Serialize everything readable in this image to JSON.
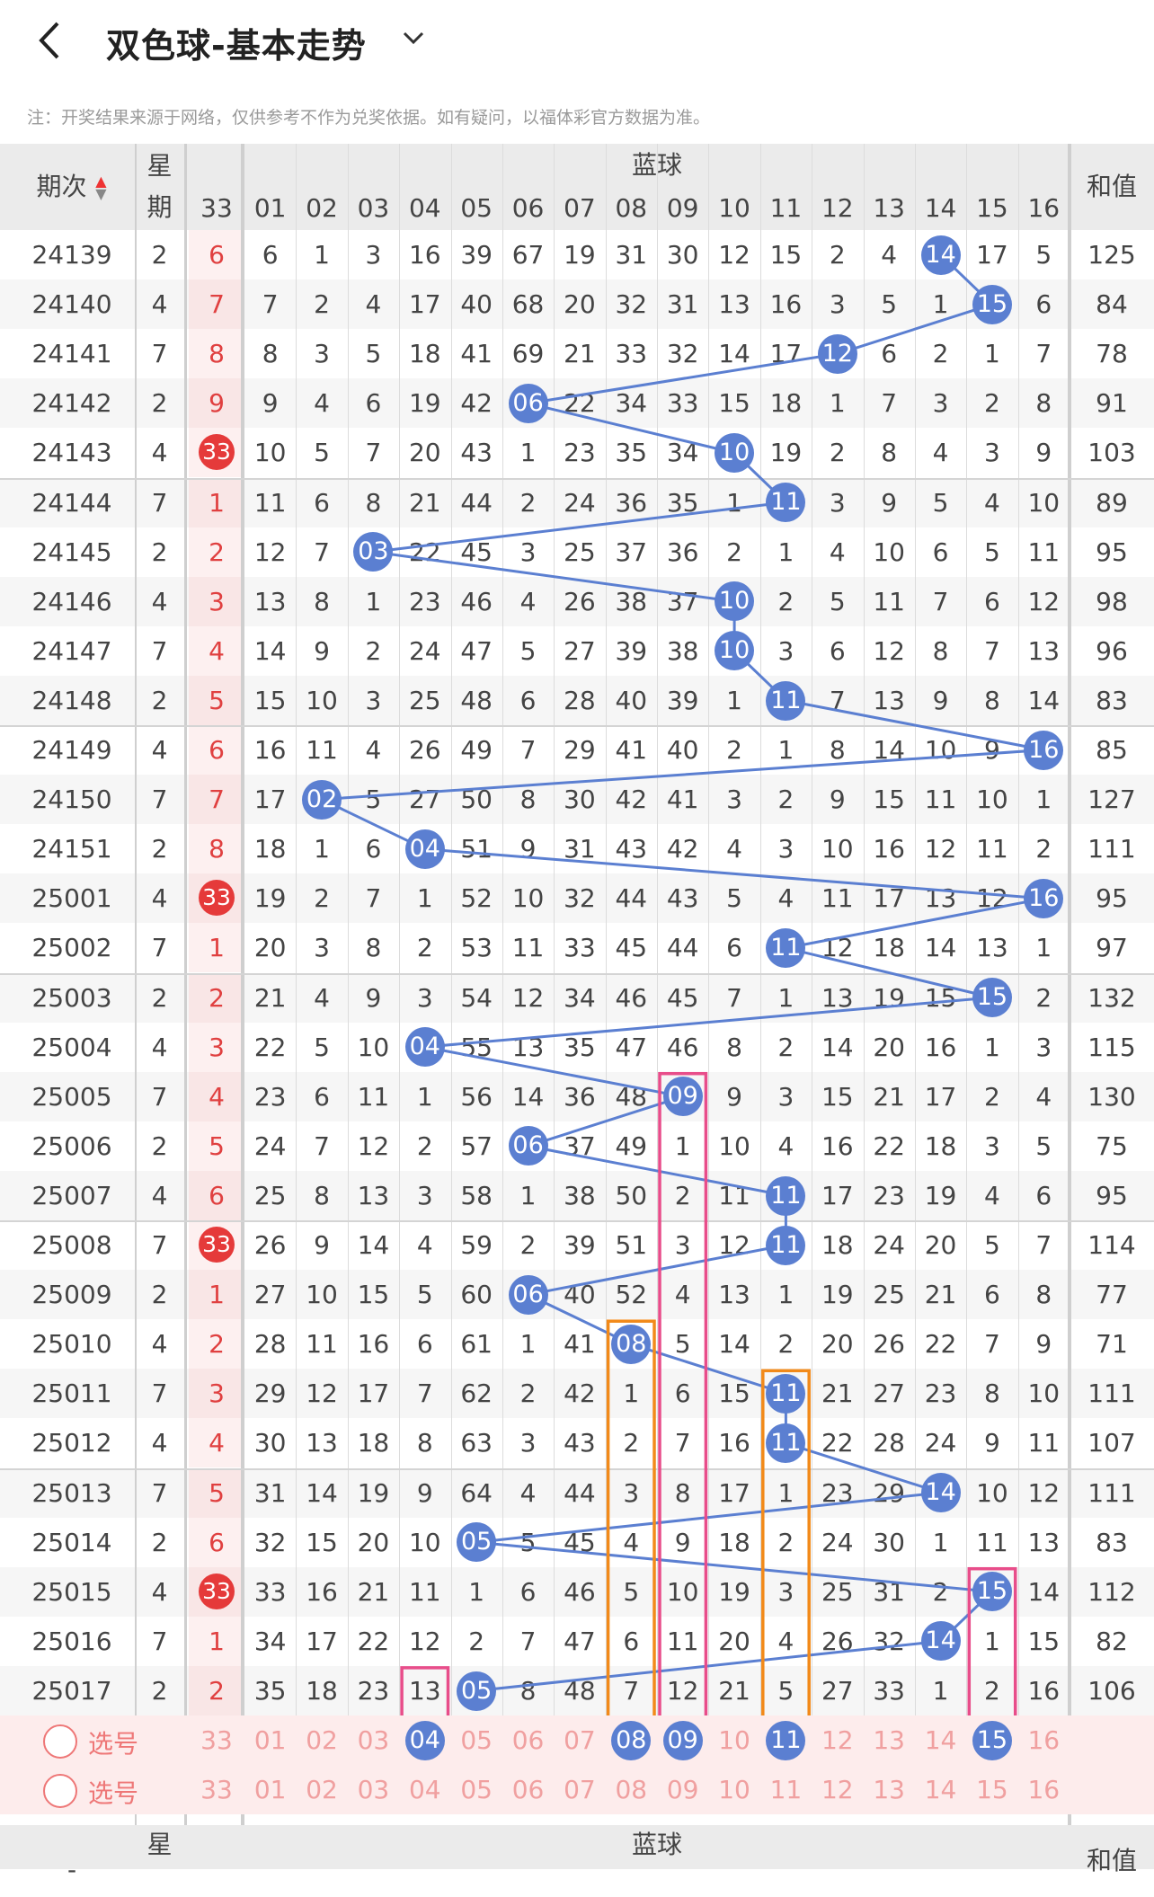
{
  "header": {
    "title": "双色球-基本走势",
    "back_icon": "chevron-left-icon",
    "dropdown_icon": "chevron-down-icon"
  },
  "note": "注：开奖结果来源于网络，仅供参考不作为兑奖依据。如有疑问，以福体彩官方数据为准。",
  "table_header": {
    "period": "期次",
    "weekday_a": "星",
    "weekday_b": "期",
    "col33": "33",
    "blue_title": "蓝球",
    "sum": "和值",
    "blue_cols": [
      "01",
      "02",
      "03",
      "04",
      "05",
      "06",
      "07",
      "08",
      "09",
      "10",
      "11",
      "12",
      "13",
      "14",
      "15",
      "16"
    ]
  },
  "rows": [
    {
      "p": "24139",
      "w": "2",
      "r": "6",
      "v": [
        6,
        1,
        3,
        16,
        39,
        67,
        19,
        31,
        30,
        12,
        15,
        2,
        4,
        14,
        17,
        5
      ],
      "b": 14,
      "s": "125"
    },
    {
      "p": "24140",
      "w": "4",
      "r": "7",
      "v": [
        7,
        2,
        4,
        17,
        40,
        68,
        20,
        32,
        31,
        13,
        16,
        3,
        5,
        1,
        15,
        6
      ],
      "b": 15,
      "s": "84"
    },
    {
      "p": "24141",
      "w": "7",
      "r": "8",
      "v": [
        8,
        3,
        5,
        18,
        41,
        69,
        21,
        33,
        32,
        14,
        17,
        12,
        6,
        2,
        1,
        7
      ],
      "b": 12,
      "s": "78"
    },
    {
      "p": "24142",
      "w": "2",
      "r": "9",
      "v": [
        9,
        4,
        6,
        19,
        42,
        6,
        22,
        34,
        33,
        15,
        18,
        1,
        7,
        3,
        2,
        8
      ],
      "b": 6,
      "s": "91"
    },
    {
      "p": "24143",
      "w": "4",
      "r": "33",
      "v": [
        10,
        5,
        7,
        20,
        43,
        1,
        23,
        35,
        34,
        10,
        19,
        2,
        8,
        4,
        3,
        9
      ],
      "b": 10,
      "s": "103"
    },
    {
      "p": "24144",
      "w": "7",
      "r": "1",
      "v": [
        11,
        6,
        8,
        21,
        44,
        2,
        24,
        36,
        35,
        1,
        11,
        3,
        9,
        5,
        4,
        10
      ],
      "b": 11,
      "s": "89"
    },
    {
      "p": "24145",
      "w": "2",
      "r": "2",
      "v": [
        12,
        7,
        3,
        22,
        45,
        3,
        25,
        37,
        36,
        2,
        1,
        4,
        10,
        6,
        5,
        11
      ],
      "b": 3,
      "s": "95"
    },
    {
      "p": "24146",
      "w": "4",
      "r": "3",
      "v": [
        13,
        8,
        1,
        23,
        46,
        4,
        26,
        38,
        37,
        10,
        2,
        5,
        11,
        7,
        6,
        12
      ],
      "b": 10,
      "s": "98"
    },
    {
      "p": "24147",
      "w": "7",
      "r": "4",
      "v": [
        14,
        9,
        2,
        24,
        47,
        5,
        27,
        39,
        38,
        10,
        3,
        6,
        12,
        8,
        7,
        13
      ],
      "b": 10,
      "s": "96"
    },
    {
      "p": "24148",
      "w": "2",
      "r": "5",
      "v": [
        15,
        10,
        3,
        25,
        48,
        6,
        28,
        40,
        39,
        1,
        11,
        7,
        13,
        9,
        8,
        14
      ],
      "b": 11,
      "s": "83"
    },
    {
      "p": "24149",
      "w": "4",
      "r": "6",
      "v": [
        16,
        11,
        4,
        26,
        49,
        7,
        29,
        41,
        40,
        2,
        1,
        8,
        14,
        10,
        9,
        16
      ],
      "b": 16,
      "s": "85"
    },
    {
      "p": "24150",
      "w": "7",
      "r": "7",
      "v": [
        17,
        2,
        5,
        27,
        50,
        8,
        30,
        42,
        41,
        3,
        2,
        9,
        15,
        11,
        10,
        1
      ],
      "b": 2,
      "s": "127"
    },
    {
      "p": "24151",
      "w": "2",
      "r": "8",
      "v": [
        18,
        1,
        6,
        4,
        51,
        9,
        31,
        43,
        42,
        4,
        3,
        10,
        16,
        12,
        11,
        2
      ],
      "b": 4,
      "s": "111"
    },
    {
      "p": "25001",
      "w": "4",
      "r": "33",
      "v": [
        19,
        2,
        7,
        1,
        52,
        10,
        32,
        44,
        43,
        5,
        4,
        11,
        17,
        13,
        12,
        16
      ],
      "b": 16,
      "s": "95"
    },
    {
      "p": "25002",
      "w": "7",
      "r": "1",
      "v": [
        20,
        3,
        8,
        2,
        53,
        11,
        33,
        45,
        44,
        6,
        11,
        12,
        18,
        14,
        13,
        1
      ],
      "b": 11,
      "s": "97"
    },
    {
      "p": "25003",
      "w": "2",
      "r": "2",
      "v": [
        21,
        4,
        9,
        3,
        54,
        12,
        34,
        46,
        45,
        7,
        1,
        13,
        19,
        15,
        15,
        2
      ],
      "b": 15,
      "s": "132"
    },
    {
      "p": "25004",
      "w": "4",
      "r": "3",
      "v": [
        22,
        5,
        10,
        4,
        55,
        13,
        35,
        47,
        46,
        8,
        2,
        14,
        20,
        16,
        1,
        3
      ],
      "b": 4,
      "s": "115"
    },
    {
      "p": "25005",
      "w": "7",
      "r": "4",
      "v": [
        23,
        6,
        11,
        1,
        56,
        14,
        36,
        48,
        9,
        9,
        3,
        15,
        21,
        17,
        2,
        4
      ],
      "b": 9,
      "s": "130"
    },
    {
      "p": "25006",
      "w": "2",
      "r": "5",
      "v": [
        24,
        7,
        12,
        2,
        57,
        6,
        37,
        49,
        1,
        10,
        4,
        16,
        22,
        18,
        3,
        5
      ],
      "b": 6,
      "s": "75"
    },
    {
      "p": "25007",
      "w": "4",
      "r": "6",
      "v": [
        25,
        8,
        13,
        3,
        58,
        1,
        38,
        50,
        2,
        11,
        11,
        17,
        23,
        19,
        4,
        6
      ],
      "b": 11,
      "s": "95"
    },
    {
      "p": "25008",
      "w": "7",
      "r": "33",
      "v": [
        26,
        9,
        14,
        4,
        59,
        2,
        39,
        51,
        3,
        12,
        11,
        18,
        24,
        20,
        5,
        7
      ],
      "b": 11,
      "s": "114"
    },
    {
      "p": "25009",
      "w": "2",
      "r": "1",
      "v": [
        27,
        10,
        15,
        5,
        60,
        6,
        40,
        52,
        4,
        13,
        1,
        19,
        25,
        21,
        6,
        8
      ],
      "b": 6,
      "s": "77"
    },
    {
      "p": "25010",
      "w": "4",
      "r": "2",
      "v": [
        28,
        11,
        16,
        6,
        61,
        1,
        41,
        8,
        5,
        14,
        2,
        20,
        26,
        22,
        7,
        9
      ],
      "b": 8,
      "s": "71"
    },
    {
      "p": "25011",
      "w": "7",
      "r": "3",
      "v": [
        29,
        12,
        17,
        7,
        62,
        2,
        42,
        1,
        6,
        15,
        11,
        21,
        27,
        23,
        8,
        10
      ],
      "b": 11,
      "s": "111"
    },
    {
      "p": "25012",
      "w": "4",
      "r": "4",
      "v": [
        30,
        13,
        18,
        8,
        63,
        3,
        43,
        2,
        7,
        16,
        11,
        22,
        28,
        24,
        9,
        11
      ],
      "b": 11,
      "s": "107"
    },
    {
      "p": "25013",
      "w": "7",
      "r": "5",
      "v": [
        31,
        14,
        19,
        9,
        64,
        4,
        44,
        3,
        8,
        17,
        1,
        23,
        29,
        14,
        10,
        12
      ],
      "b": 14,
      "s": "111"
    },
    {
      "p": "25014",
      "w": "2",
      "r": "6",
      "v": [
        32,
        15,
        20,
        10,
        5,
        5,
        45,
        4,
        9,
        18,
        2,
        24,
        30,
        1,
        11,
        13
      ],
      "b": 5,
      "s": "83"
    },
    {
      "p": "25015",
      "w": "4",
      "r": "33",
      "v": [
        33,
        16,
        21,
        11,
        1,
        6,
        46,
        5,
        10,
        19,
        3,
        25,
        31,
        2,
        15,
        14
      ],
      "b": 15,
      "s": "112"
    },
    {
      "p": "25016",
      "w": "7",
      "r": "1",
      "v": [
        34,
        17,
        22,
        12,
        2,
        7,
        47,
        6,
        11,
        20,
        4,
        26,
        32,
        14,
        1,
        15
      ],
      "b": 14,
      "s": "82"
    },
    {
      "p": "25017",
      "w": "2",
      "r": "2",
      "v": [
        35,
        18,
        23,
        13,
        5,
        8,
        48,
        7,
        12,
        21,
        5,
        27,
        33,
        1,
        2,
        16
      ],
      "b": 5,
      "s": "106"
    }
  ],
  "pick_label": "选号",
  "pick_rows": [
    {
      "selected": [
        4,
        8,
        9,
        11,
        15
      ]
    },
    {
      "selected": []
    }
  ],
  "colors": {
    "blue": "#5b7fd1",
    "red": "#e53a3a",
    "orange": "#f28a1a",
    "pink": "#e84d8a"
  }
}
